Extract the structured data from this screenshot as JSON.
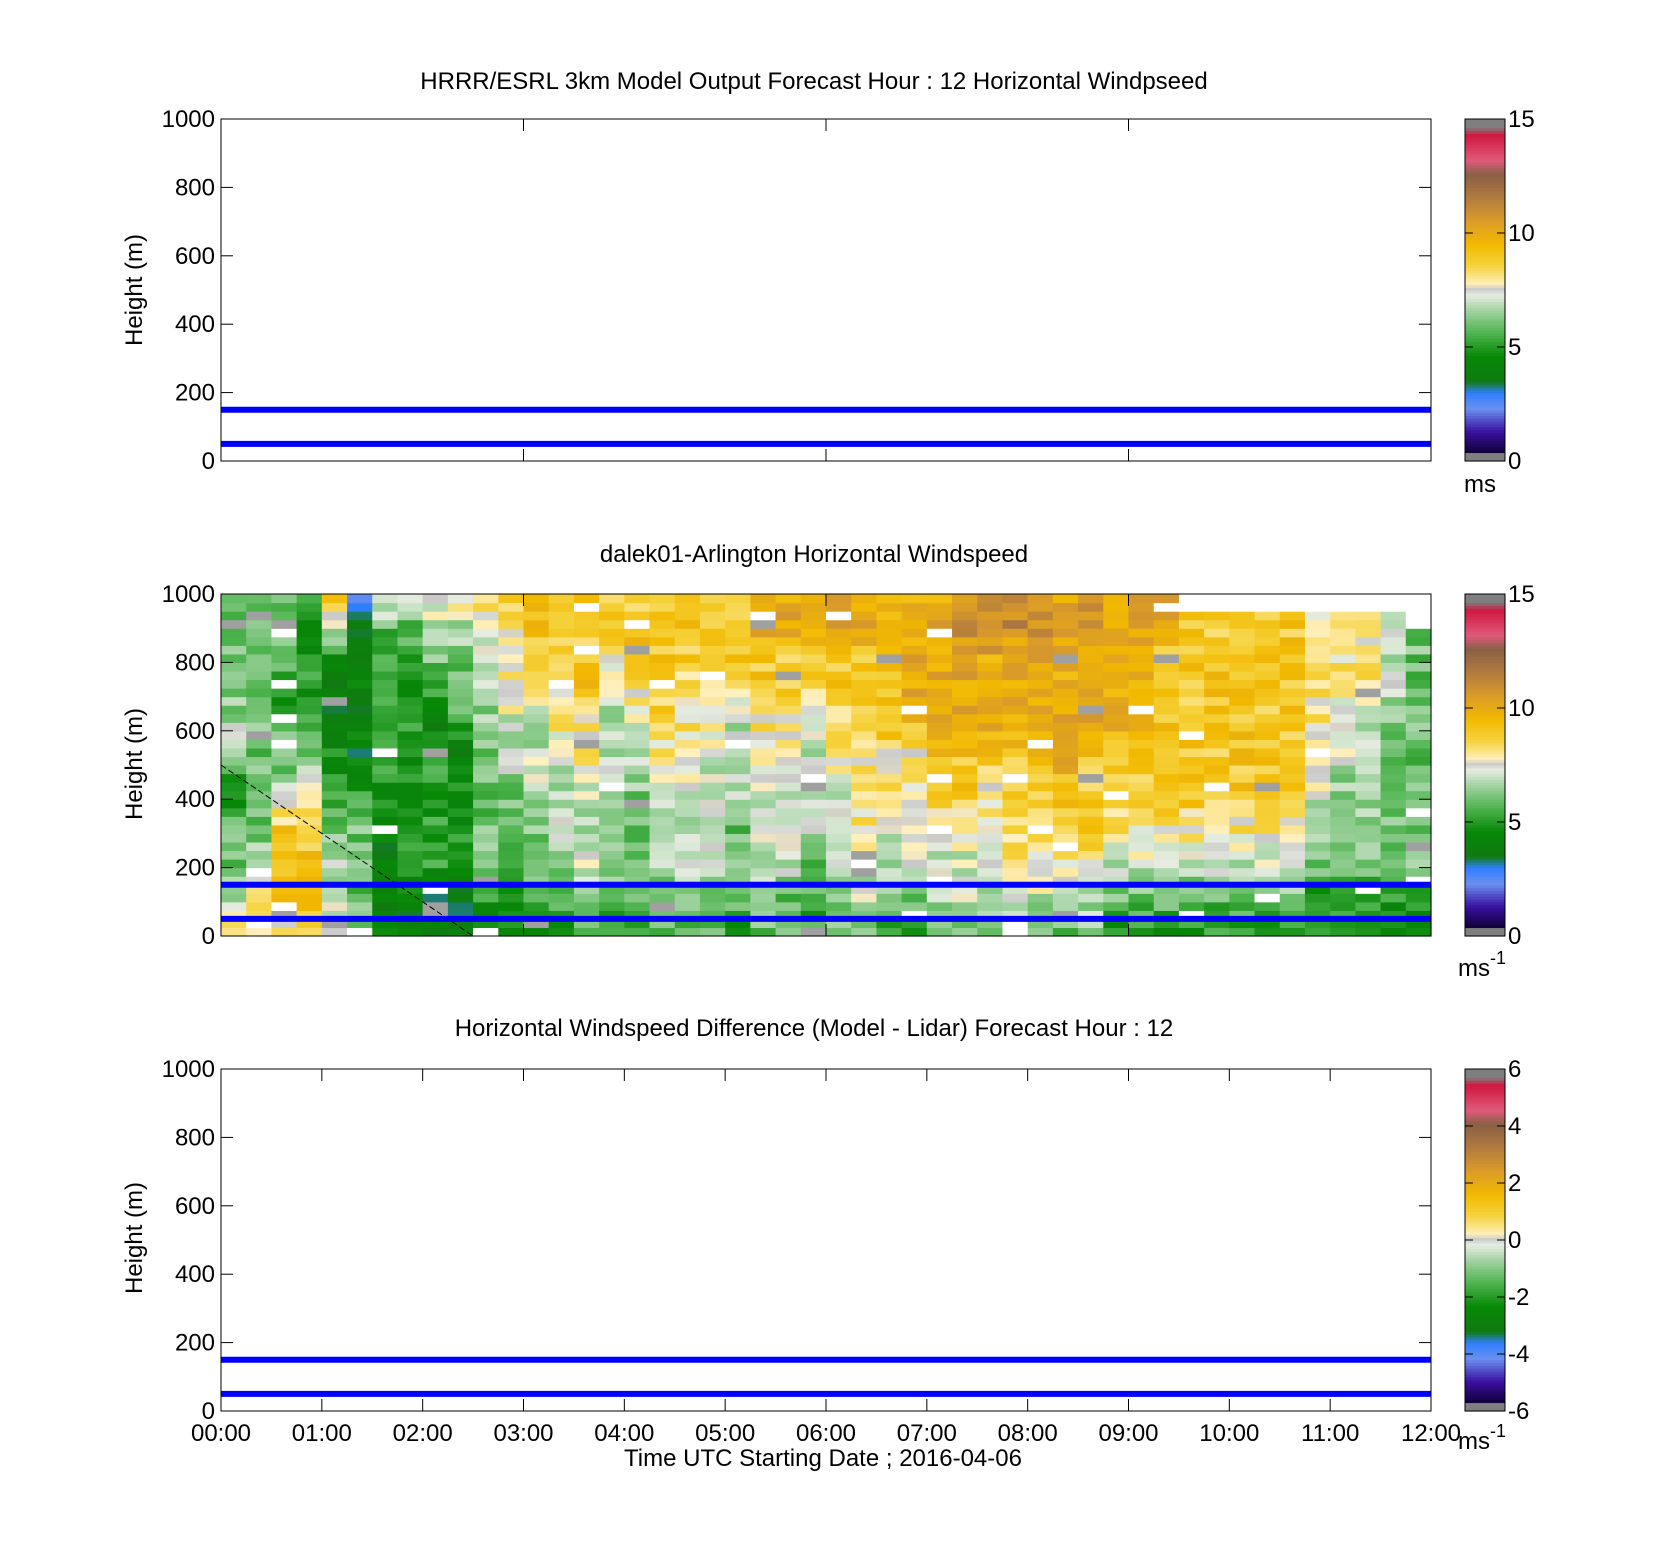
{
  "figure": {
    "xlabel": "Time UTC  Starting Date ; 2016-04-06",
    "x_tick_labels": [
      "00:00",
      "01:00",
      "02:00",
      "03:00",
      "04:00",
      "05:00",
      "06:00",
      "07:00",
      "08:00",
      "09:00",
      "10:00",
      "11:00",
      "12:00"
    ]
  },
  "colors": {
    "reference_line": "#0000ff",
    "axes": "#000000",
    "background": "#ffffff",
    "missing": "#808080"
  },
  "chart_data": [
    {
      "type": "heatmap",
      "title": "HRRR/ESRL 3km Model Output   Forecast Hour : 12 Horizontal Windpseed",
      "ylabel": "Height (m)",
      "ylim": [
        0,
        1000
      ],
      "y_ticks": [
        "0",
        "200",
        "400",
        "600",
        "800",
        "1000"
      ],
      "x_range_hours": [
        0,
        12
      ],
      "reference_lines_m": [
        50,
        150
      ],
      "colorbar": {
        "ticks": [
          "0",
          "5",
          "10",
          "15"
        ],
        "label": "ms",
        "label_sup": "",
        "range": [
          0,
          15
        ]
      },
      "data": "empty"
    },
    {
      "type": "heatmap",
      "title": "dalek01-Arlington  Horizontal Windspeed",
      "ylabel": "Height (m)",
      "ylim": [
        0,
        1000
      ],
      "y_ticks": [
        "0",
        "200",
        "400",
        "600",
        "800",
        "1000"
      ],
      "x_range_hours": [
        0,
        12
      ],
      "reference_lines_m": [
        50,
        150
      ],
      "colorbar": {
        "ticks": [
          "0",
          "5",
          "10",
          "15"
        ],
        "label": "ms",
        "label_sup": "-1",
        "range": [
          0,
          15
        ]
      },
      "column_step_hours": 0.25,
      "columns_hours": [
        0,
        11.75
      ],
      "diagonal_dashed_line": [
        [
          0,
          500
        ],
        [
          2.5,
          0
        ]
      ],
      "speed_profile_by_column_ms": [
        [
          8,
          7,
          6,
          6,
          5,
          6,
          7,
          6,
          6,
          6,
          6
        ],
        [
          8,
          8,
          7,
          6,
          6,
          6,
          6,
          6,
          6,
          6,
          6
        ],
        [
          8,
          9,
          9,
          9,
          7,
          6,
          6,
          5,
          6,
          6,
          6
        ],
        [
          9,
          9,
          9,
          9,
          8,
          6,
          5,
          5,
          5,
          4,
          5
        ],
        [
          7,
          7,
          7,
          6,
          5,
          5,
          4,
          4,
          4,
          8,
          9
        ],
        [
          6,
          6,
          6,
          6,
          5,
          4,
          4,
          4,
          4,
          4,
          3
        ],
        [
          4,
          4,
          4,
          4,
          5,
          5,
          5,
          5,
          5,
          6,
          8
        ],
        [
          4,
          4,
          5,
          5,
          5,
          5,
          5,
          5,
          5,
          6,
          7
        ],
        [
          4,
          4,
          5,
          5,
          5,
          5,
          4,
          5,
          6,
          7,
          8
        ],
        [
          4,
          4,
          5,
          5,
          5,
          4,
          5,
          6,
          6,
          7,
          8
        ],
        [
          5,
          5,
          6,
          6,
          6,
          6,
          6,
          7,
          7,
          8,
          9
        ],
        [
          5,
          5,
          6,
          6,
          6,
          7,
          7,
          8,
          8,
          8,
          9
        ],
        [
          5,
          6,
          6,
          6,
          7,
          7,
          7,
          8,
          9,
          9,
          9
        ],
        [
          5,
          6,
          6,
          7,
          7,
          7,
          8,
          8,
          9,
          9,
          9
        ],
        [
          6,
          6,
          7,
          7,
          7,
          8,
          8,
          9,
          9,
          9,
          9
        ],
        [
          5,
          6,
          6,
          7,
          7,
          7,
          7,
          7,
          8,
          9,
          9
        ],
        [
          5,
          6,
          6,
          6,
          6,
          7,
          7,
          8,
          9,
          9,
          9
        ],
        [
          6,
          6,
          7,
          7,
          7,
          8,
          8,
          9,
          9,
          9,
          9
        ],
        [
          6,
          6,
          7,
          7,
          7,
          8,
          8,
          8,
          9,
          9,
          9
        ],
        [
          6,
          6,
          7,
          7,
          7,
          7,
          8,
          8,
          9,
          9,
          9
        ],
        [
          5,
          6,
          6,
          6,
          7,
          7,
          7,
          8,
          9,
          9,
          9
        ],
        [
          6,
          6,
          7,
          7,
          7,
          8,
          8,
          9,
          9,
          10,
          10
        ],
        [
          6,
          6,
          7,
          7,
          7,
          8,
          8,
          9,
          9,
          10,
          10
        ],
        [
          5,
          6,
          6,
          7,
          7,
          7,
          7,
          8,
          9,
          10,
          10
        ],
        [
          6,
          6,
          7,
          7,
          7,
          8,
          8,
          9,
          9,
          10,
          10
        ],
        [
          6,
          7,
          7,
          8,
          8,
          8,
          9,
          9,
          9,
          10,
          10
        ],
        [
          5,
          6,
          7,
          7,
          8,
          8,
          9,
          9,
          9,
          10,
          10
        ],
        [
          5,
          6,
          7,
          7,
          8,
          8,
          9,
          10,
          10,
          10,
          10
        ],
        [
          6,
          7,
          7,
          8,
          9,
          9,
          10,
          10,
          10,
          10,
          10
        ],
        [
          6,
          7,
          7,
          8,
          9,
          9,
          10,
          10,
          10,
          11,
          10
        ],
        [
          6,
          7,
          7,
          8,
          8,
          9,
          10,
          10,
          10,
          11,
          11
        ],
        [
          6,
          7,
          8,
          8,
          9,
          9,
          10,
          10,
          10,
          11,
          11
        ],
        [
          6,
          7,
          8,
          8,
          9,
          9,
          10,
          10,
          10,
          11,
          11
        ],
        [
          6,
          7,
          8,
          9,
          9,
          10,
          10,
          10,
          10,
          10,
          10
        ],
        [
          6,
          7,
          8,
          9,
          9,
          9,
          10,
          10,
          10,
          11,
          11
        ],
        [
          5,
          6,
          7,
          8,
          9,
          9,
          10,
          10,
          10,
          10,
          10
        ],
        [
          5,
          6,
          7,
          8,
          9,
          9,
          10,
          10,
          10,
          10,
          10
        ],
        [
          5,
          6,
          7,
          8,
          9,
          9,
          9,
          9,
          9,
          10,
          10
        ],
        [
          5,
          6,
          7,
          8,
          9,
          9,
          9,
          9,
          9,
          9,
          9
        ],
        [
          5,
          6,
          7,
          8,
          9,
          9,
          9,
          9,
          9,
          9,
          9
        ],
        [
          5,
          6,
          7,
          8,
          9,
          9,
          9,
          9,
          9,
          9,
          9
        ],
        [
          5,
          6,
          7,
          8,
          9,
          9,
          9,
          9,
          9,
          9,
          9
        ],
        [
          5,
          6,
          7,
          8,
          9,
          9,
          9,
          9,
          9,
          9,
          9
        ],
        [
          5,
          5,
          6,
          7,
          7,
          8,
          8,
          8,
          8,
          8,
          8
        ],
        [
          5,
          5,
          6,
          6,
          6,
          7,
          7,
          8,
          8,
          8,
          8
        ],
        [
          5,
          5,
          6,
          6,
          7,
          7,
          7,
          8,
          8,
          8,
          8
        ],
        [
          5,
          5,
          6,
          6,
          6,
          6,
          6,
          7,
          7,
          7,
          7
        ],
        [
          5,
          5,
          6,
          6,
          6,
          6,
          6,
          6,
          6,
          6,
          6
        ]
      ]
    },
    {
      "type": "heatmap",
      "title": "Horizontal Windspeed Difference (Model - Lidar) Forecast Hour : 12",
      "ylabel": "Height (m)",
      "ylim": [
        0,
        1000
      ],
      "y_ticks": [
        "0",
        "200",
        "400",
        "600",
        "800",
        "1000"
      ],
      "x_range_hours": [
        0,
        12
      ],
      "reference_lines_m": [
        50,
        150
      ],
      "colorbar": {
        "ticks": [
          "-6",
          "-4",
          "-2",
          "0",
          "2",
          "4",
          "6"
        ],
        "label": "ms",
        "label_sup": "-1",
        "range": [
          -6,
          6
        ]
      },
      "data": "empty"
    }
  ]
}
